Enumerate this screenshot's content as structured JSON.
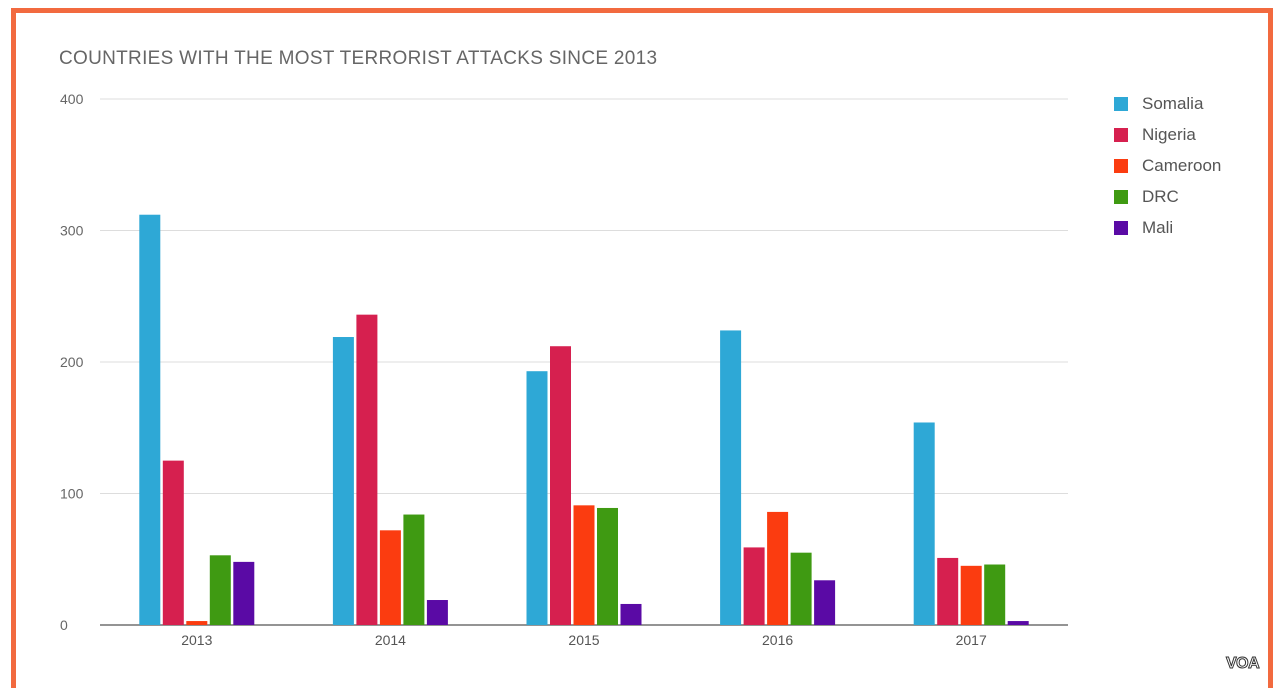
{
  "chart_data": {
    "type": "bar",
    "title": "COUNTRIES WITH THE MOST TERRORIST ATTACKS SINCE 2013",
    "categories": [
      "2013",
      "2014",
      "2015",
      "2016",
      "2017"
    ],
    "series": [
      {
        "name": "Somalia",
        "color": "#2ea8d6",
        "values": [
          312,
          219,
          193,
          224,
          154
        ]
      },
      {
        "name": "Nigeria",
        "color": "#d6204f",
        "values": [
          125,
          236,
          212,
          59,
          51
        ]
      },
      {
        "name": "Cameroon",
        "color": "#fb3c10",
        "values": [
          3,
          72,
          91,
          86,
          45
        ]
      },
      {
        "name": "DRC",
        "color": "#3f9a12",
        "values": [
          53,
          84,
          89,
          55,
          46
        ]
      },
      {
        "name": "Mali",
        "color": "#5a0aa5",
        "values": [
          48,
          19,
          16,
          34,
          3
        ]
      }
    ],
    "ylim": [
      0,
      400
    ],
    "yticks": [
      0,
      100,
      200,
      300,
      400
    ],
    "xlabel": "",
    "ylabel": "",
    "grid": true,
    "legend": "right"
  },
  "logo_text": "VOA"
}
